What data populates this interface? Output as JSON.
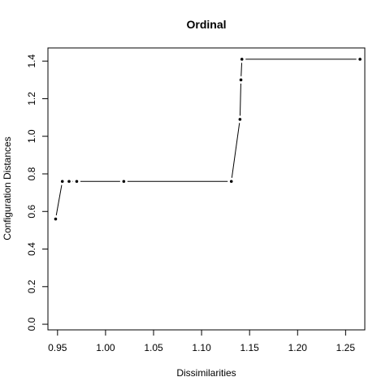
{
  "chart_data": {
    "type": "scatter",
    "title": "Ordinal",
    "xlabel": "Dissimilarities",
    "ylabel": "Configuration Distances",
    "xlim": [
      0.94,
      1.27
    ],
    "ylim": [
      -0.03,
      1.47
    ],
    "xticks": [
      0.95,
      1.0,
      1.05,
      1.1,
      1.15,
      1.2,
      1.25
    ],
    "xtick_labels": [
      "0.95",
      "1.00",
      "1.05",
      "1.10",
      "1.15",
      "1.20",
      "1.25"
    ],
    "yticks": [
      0.0,
      0.2,
      0.4,
      0.6,
      0.8,
      1.0,
      1.2,
      1.4
    ],
    "ytick_labels": [
      "0.0",
      "0.2",
      "0.4",
      "0.6",
      "0.8",
      "1.0",
      "1.2",
      "1.4"
    ],
    "grid": false,
    "points": {
      "x": [
        0.948,
        0.955,
        0.962,
        0.97,
        1.019,
        1.131,
        1.14,
        1.141,
        1.142,
        1.265
      ],
      "y": [
        0.56,
        0.76,
        0.76,
        0.76,
        0.76,
        0.76,
        1.09,
        1.3,
        1.41,
        1.41
      ]
    },
    "step_line": {
      "x": [
        0.948,
        0.955,
        0.962,
        0.97,
        1.019,
        1.131,
        1.14,
        1.141,
        1.142,
        1.265
      ],
      "y": [
        0.56,
        0.76,
        0.76,
        0.76,
        0.76,
        0.76,
        1.09,
        1.3,
        1.41,
        1.41
      ]
    },
    "colors": {
      "axis": "#000000",
      "points": "#000000",
      "line": "#000000"
    }
  }
}
